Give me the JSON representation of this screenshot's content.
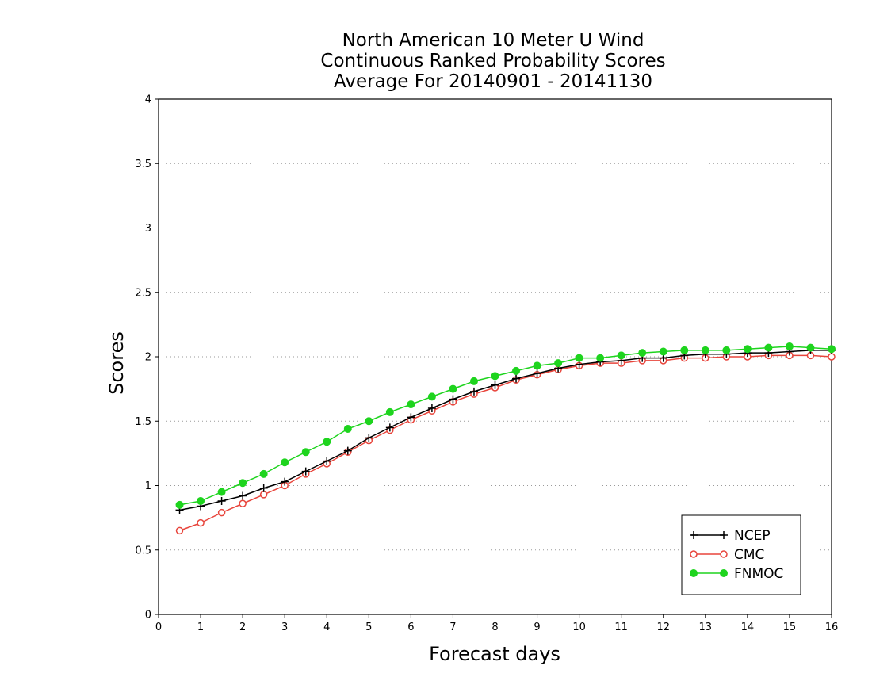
{
  "chart_data": {
    "type": "line",
    "title": [
      "North American 10 Meter U Wind",
      "Continuous Ranked Probability Scores",
      "Average For 20140901 - 20141130"
    ],
    "xlabel": "Forecast days",
    "ylabel": "Scores",
    "xlim": [
      0,
      16
    ],
    "ylim": [
      0,
      4
    ],
    "xticks": [
      0,
      1,
      2,
      3,
      4,
      5,
      6,
      7,
      8,
      9,
      10,
      11,
      12,
      13,
      14,
      15,
      16
    ],
    "yticks": [
      0,
      0.5,
      1,
      1.5,
      2,
      2.5,
      3,
      3.5,
      4
    ],
    "ytick_labels": [
      "0",
      "0.5",
      "1",
      "1.5",
      "2",
      "2.5",
      "3",
      "3.5",
      "4"
    ],
    "grid": "horizontal dotted",
    "legend_position": "bottom-right",
    "x": [
      0.5,
      1,
      1.5,
      2,
      2.5,
      3,
      3.5,
      4,
      4.5,
      5,
      5.5,
      6,
      6.5,
      7,
      7.5,
      8,
      8.5,
      9,
      9.5,
      10,
      10.5,
      11,
      11.5,
      12,
      12.5,
      13,
      13.5,
      14,
      14.5,
      15,
      15.5,
      16
    ],
    "series": [
      {
        "name": "NCEP",
        "color": "#000000",
        "marker": "plus",
        "values": [
          0.81,
          0.84,
          0.88,
          0.92,
          0.98,
          1.03,
          1.11,
          1.19,
          1.27,
          1.37,
          1.45,
          1.53,
          1.6,
          1.67,
          1.73,
          1.78,
          1.83,
          1.87,
          1.91,
          1.94,
          1.96,
          1.97,
          1.99,
          1.99,
          2.01,
          2.02,
          2.02,
          2.03,
          2.03,
          2.04,
          2.05,
          2.05
        ]
      },
      {
        "name": "CMC",
        "color": "#e8453c",
        "marker": "open-circle",
        "values": [
          0.65,
          0.71,
          0.79,
          0.86,
          0.93,
          1.0,
          1.09,
          1.17,
          1.26,
          1.35,
          1.43,
          1.51,
          1.58,
          1.65,
          1.71,
          1.76,
          1.82,
          1.86,
          1.9,
          1.93,
          1.95,
          1.95,
          1.97,
          1.97,
          1.99,
          1.99,
          2.0,
          2.0,
          2.01,
          2.01,
          2.01,
          2.0
        ]
      },
      {
        "name": "FNMOC",
        "color": "#1ed41e",
        "marker": "filled-circle",
        "values": [
          0.85,
          0.88,
          0.95,
          1.02,
          1.09,
          1.18,
          1.26,
          1.34,
          1.44,
          1.5,
          1.57,
          1.63,
          1.69,
          1.75,
          1.81,
          1.85,
          1.89,
          1.93,
          1.95,
          1.99,
          1.99,
          2.01,
          2.03,
          2.04,
          2.05,
          2.05,
          2.05,
          2.06,
          2.07,
          2.08,
          2.07,
          2.06
        ]
      }
    ]
  }
}
